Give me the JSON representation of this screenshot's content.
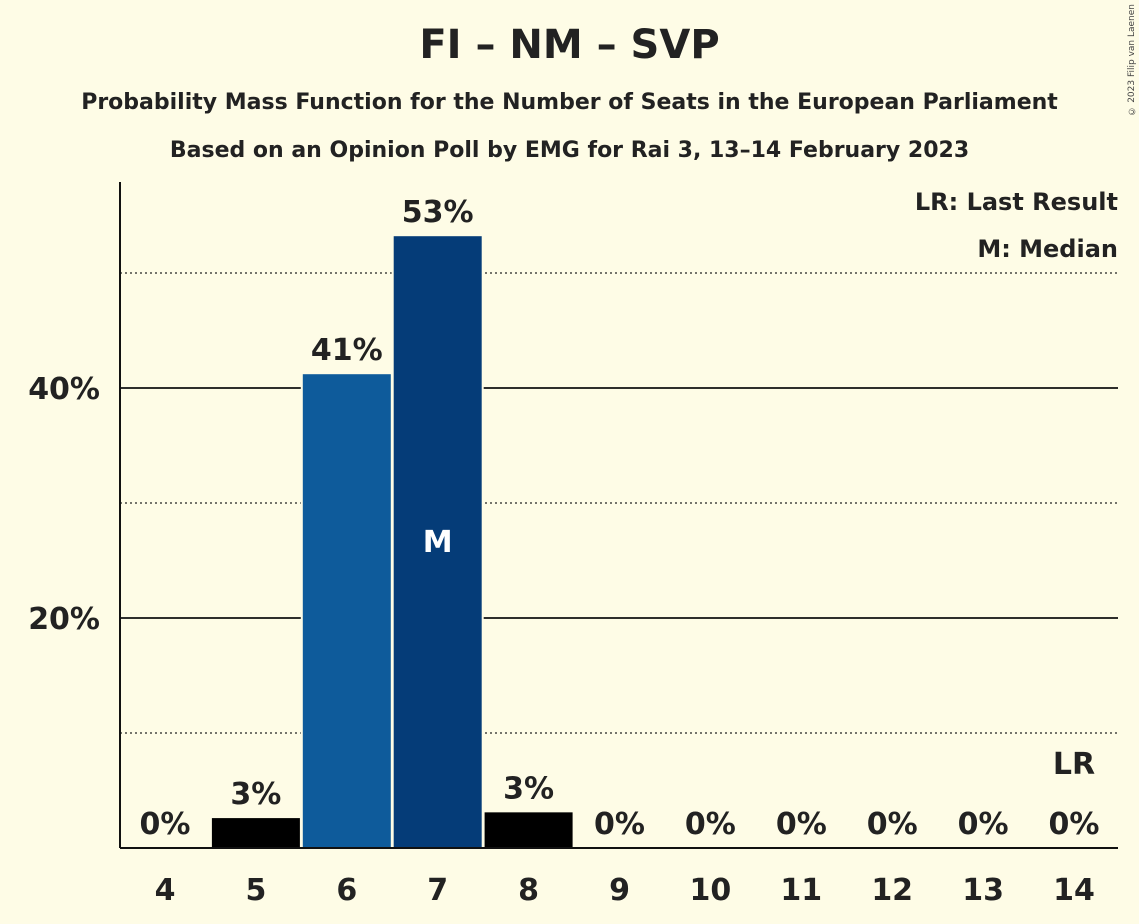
{
  "chart_data": {
    "type": "bar",
    "title": "FI – NM – SVP",
    "subtitle": "Probability Mass Function for the Number of Seats in the European Parliament",
    "subtitle2": "Based on an Opinion Poll by EMG for Rai 3, 13–14 February 2023",
    "categories": [
      "4",
      "5",
      "6",
      "7",
      "8",
      "9",
      "10",
      "11",
      "12",
      "13",
      "14"
    ],
    "values": [
      0,
      2.6,
      41.2,
      53.2,
      3.1,
      0,
      0,
      0,
      0,
      0,
      0
    ],
    "value_labels": [
      "0%",
      "3%",
      "41%",
      "53%",
      "3%",
      "0%",
      "0%",
      "0%",
      "0%",
      "0%",
      "0%"
    ],
    "bar_colors": [
      "#000000",
      "#000000",
      "#0e5b9b",
      "#053c78",
      "#000000",
      "#000000",
      "#000000",
      "#000000",
      "#000000",
      "#000000",
      "#000000"
    ],
    "ylim": [
      0,
      58
    ],
    "yticks": [
      20,
      40
    ],
    "ytick_labels": [
      "20%",
      "40%"
    ],
    "minor_gridlines": [
      10,
      30,
      50
    ],
    "median_category": "7",
    "median_marker": "M",
    "last_result_category": "14",
    "last_result_marker": "LR",
    "legend": [
      "LR: Last Result",
      "M: Median"
    ],
    "legend_position": "top-right",
    "grid": true
  },
  "copyright": "© 2023 Filip van Laenen"
}
